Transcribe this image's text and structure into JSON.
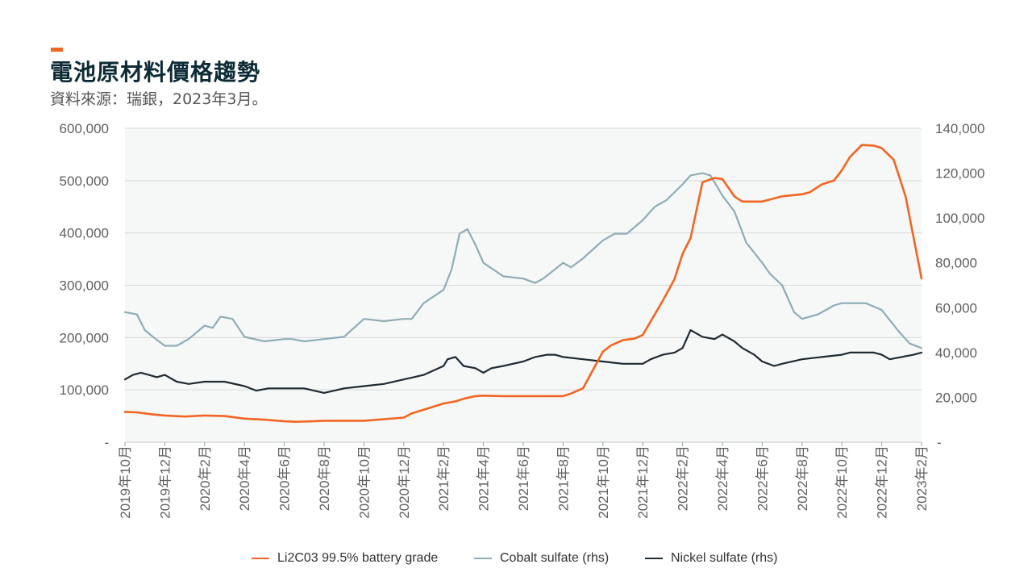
{
  "header": {
    "title": "電池原材料價格趨勢",
    "subtitle": "資料來源：瑞銀，2023年3月。"
  },
  "colors": {
    "lithium": "#f26522",
    "cobalt": "#8fadb5",
    "nickel": "#1f2a33",
    "plot_bg": "#f6f8f7",
    "accent": "#f26522"
  },
  "chart_data": {
    "type": "line",
    "x_tick_labels": [
      "2019年10月",
      "2019年12月",
      "2020年2月",
      "2020年4月",
      "2020年6月",
      "2020年8月",
      "2020年10月",
      "2020年12月",
      "2021年2月",
      "2021年4月",
      "2021年6月",
      "2021年8月",
      "2021年10月",
      "2021年12月",
      "2022年2月",
      "2022年4月",
      "2022年6月",
      "2022年8月",
      "2022年10月",
      "2022年12月",
      "2023年2月"
    ],
    "y_left": {
      "ticks": [
        "-",
        "100,000",
        "200,000",
        "300,000",
        "400,000",
        "500,000",
        "600,000"
      ],
      "lim": [
        0,
        600000
      ]
    },
    "y_right": {
      "ticks": [
        "-",
        "20,000",
        "40,000",
        "60,000",
        "80,000",
        "100,000",
        "120,000",
        "140,000"
      ],
      "lim": [
        0,
        140000
      ]
    },
    "grid": true,
    "legend_position": "bottom",
    "series": [
      {
        "name": "Li2C03 99.5% battery grade",
        "axis": "left",
        "x": [
          0,
          0.3,
          0.7,
          1,
          1.5,
          2,
          2.5,
          3,
          3.5,
          4,
          4.3,
          4.7,
          5,
          5.5,
          6,
          6.5,
          7,
          7.2,
          7.5,
          8,
          8.3,
          8.5,
          8.8,
          9,
          9.5,
          10,
          10.5,
          11,
          11.2,
          11.5,
          11.8,
          12,
          12.2,
          12.5,
          12.8,
          13,
          13.5,
          13.8,
          14,
          14.2,
          14.5,
          14.8,
          15,
          15.3,
          15.5,
          16,
          16.5,
          17,
          17.2,
          17.5,
          17.8,
          18,
          18.2,
          18.5,
          18.8,
          19,
          19.3,
          19.6,
          20
        ],
        "values": [
          58000,
          57000,
          53000,
          51000,
          49000,
          51000,
          50000,
          45000,
          43000,
          40000,
          39000,
          40000,
          41000,
          41000,
          41000,
          44000,
          47000,
          55000,
          62000,
          74000,
          78000,
          83000,
          88000,
          89000,
          88000,
          88000,
          88000,
          88000,
          93000,
          103000,
          145000,
          173000,
          185000,
          195000,
          198000,
          205000,
          270000,
          312000,
          360000,
          390000,
          497000,
          505000,
          503000,
          470000,
          460000,
          460000,
          470000,
          474000,
          478000,
          493000,
          500000,
          520000,
          545000,
          568000,
          567000,
          562000,
          540000,
          470000,
          313000
        ]
      },
      {
        "name": "Cobalt sulfate (rhs)",
        "axis": "right",
        "x": [
          0,
          0.3,
          0.5,
          0.7,
          1,
          1.3,
          1.6,
          2,
          2.2,
          2.4,
          2.7,
          3,
          3.5,
          4,
          4.2,
          4.5,
          5,
          5.5,
          6,
          6.5,
          7,
          7.2,
          7.5,
          8,
          8.2,
          8.4,
          8.6,
          8.8,
          9,
          9.5,
          10,
          10.3,
          10.5,
          11,
          11.2,
          11.5,
          12,
          12.3,
          12.6,
          13,
          13.3,
          13.6,
          14,
          14.2,
          14.5,
          14.7,
          15,
          15.3,
          15.6,
          16,
          16.2,
          16.5,
          16.8,
          17,
          17.4,
          17.8,
          18,
          18.3,
          18.6,
          19,
          19.4,
          19.7,
          20
        ],
        "values": [
          58000,
          57000,
          50000,
          47000,
          43000,
          43000,
          46000,
          52000,
          51000,
          56000,
          55000,
          47000,
          45000,
          46000,
          46000,
          45000,
          46000,
          47000,
          55000,
          54000,
          55000,
          55000,
          62000,
          68000,
          77000,
          93000,
          95000,
          88000,
          80000,
          74000,
          73000,
          71000,
          73000,
          80000,
          78000,
          82000,
          90000,
          93000,
          93000,
          99000,
          105000,
          108000,
          115000,
          119000,
          120000,
          119000,
          110000,
          103000,
          89000,
          80000,
          75000,
          70000,
          58000,
          55000,
          57000,
          61000,
          62000,
          62000,
          62000,
          59000,
          50000,
          44000,
          42000
        ]
      },
      {
        "name": "Nickel sulfate (rhs)",
        "axis": "right",
        "x": [
          0,
          0.2,
          0.4,
          0.6,
          0.8,
          1,
          1.3,
          1.6,
          2,
          2.5,
          3,
          3.3,
          3.6,
          4,
          4.5,
          5,
          5.5,
          6,
          6.5,
          7,
          7.5,
          8,
          8.1,
          8.3,
          8.5,
          8.8,
          9,
          9.2,
          9.5,
          10,
          10.3,
          10.6,
          10.8,
          11,
          11.5,
          12,
          12.5,
          13,
          13.2,
          13.5,
          13.8,
          13.9,
          14,
          14.2,
          14.5,
          14.8,
          15,
          15.3,
          15.5,
          15.8,
          16,
          16.3,
          16.5,
          17,
          17.5,
          18,
          18.2,
          18.5,
          18.8,
          19,
          19.2,
          19.5,
          19.8,
          20
        ],
        "values": [
          28000,
          30000,
          31000,
          30000,
          29000,
          30000,
          27000,
          26000,
          27000,
          27000,
          25000,
          23000,
          24000,
          24000,
          24000,
          22000,
          24000,
          25000,
          26000,
          28000,
          30000,
          34000,
          37000,
          38000,
          34000,
          33000,
          31000,
          33000,
          34000,
          36000,
          38000,
          39000,
          39000,
          38000,
          37000,
          36000,
          35000,
          35000,
          37000,
          39000,
          40000,
          41000,
          42000,
          50000,
          47000,
          46000,
          48000,
          45000,
          42000,
          39000,
          36000,
          34000,
          35000,
          37000,
          38000,
          39000,
          40000,
          40000,
          40000,
          39000,
          37000,
          38000,
          39000,
          40000
        ]
      }
    ]
  }
}
